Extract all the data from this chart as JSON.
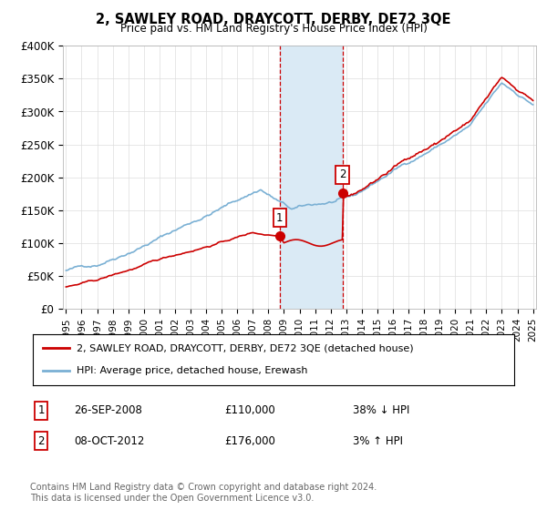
{
  "title": "2, SAWLEY ROAD, DRAYCOTT, DERBY, DE72 3QE",
  "subtitle": "Price paid vs. HM Land Registry's House Price Index (HPI)",
  "ylabel_ticks": [
    "£0",
    "£50K",
    "£100K",
    "£150K",
    "£200K",
    "£250K",
    "£300K",
    "£350K",
    "£400K"
  ],
  "ytick_values": [
    0,
    50000,
    100000,
    150000,
    200000,
    250000,
    300000,
    350000,
    400000
  ],
  "ylim": [
    0,
    400000
  ],
  "xlim_start": 1994.8,
  "xlim_end": 2025.2,
  "marker1_x": 2008.73,
  "marker1_y": 110000,
  "marker1_label": "1",
  "marker1_date": "26-SEP-2008",
  "marker1_price": "£110,000",
  "marker1_hpi": "38% ↓ HPI",
  "marker2_x": 2012.77,
  "marker2_y": 176000,
  "marker2_label": "2",
  "marker2_date": "08-OCT-2012",
  "marker2_price": "£176,000",
  "marker2_hpi": "3% ↑ HPI",
  "shade_x1": 2008.73,
  "shade_x2": 2012.77,
  "legend_line1": "2, SAWLEY ROAD, DRAYCOTT, DERBY, DE72 3QE (detached house)",
  "legend_line2": "HPI: Average price, detached house, Erewash",
  "red_color": "#cc0000",
  "blue_color": "#7ab0d4",
  "shade_color": "#daeaf5",
  "footnote": "Contains HM Land Registry data © Crown copyright and database right 2024.\nThis data is licensed under the Open Government Licence v3.0.",
  "background_color": "#ffffff",
  "grid_color": "#dddddd"
}
